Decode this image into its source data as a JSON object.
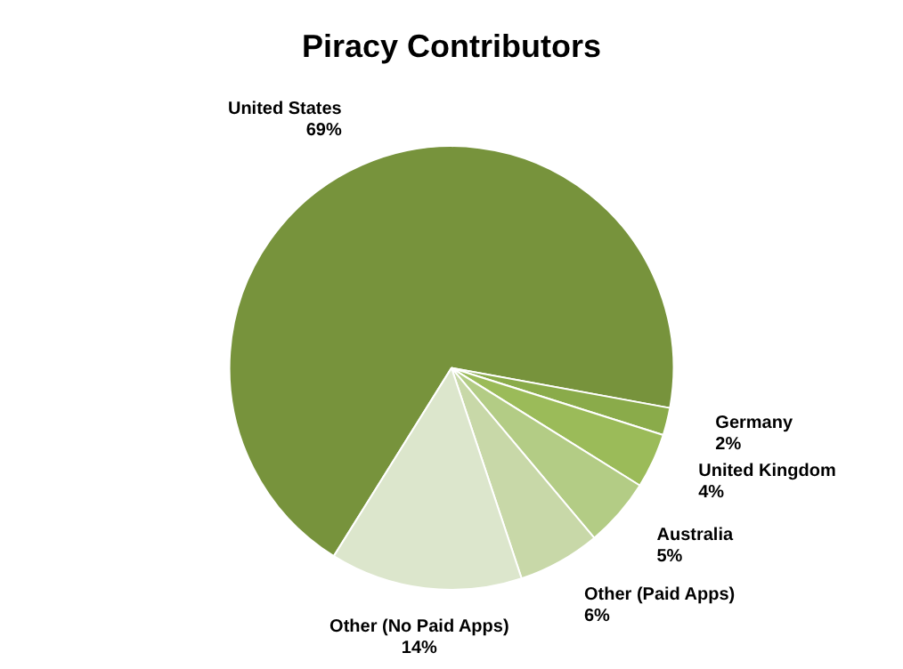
{
  "chart_data": {
    "type": "pie",
    "title": "Piracy Contributors",
    "categories": [
      "United States",
      "Germany",
      "United Kingdom",
      "Australia",
      "Other (Paid Apps)",
      "Other (No Paid Apps)"
    ],
    "values": [
      69,
      2,
      4,
      5,
      6,
      14
    ],
    "colors": [
      "#77933c",
      "#8aab4a",
      "#9bbb59",
      "#b3cc85",
      "#c8d8a8",
      "#dce6cc"
    ],
    "value_labels": [
      "69%",
      "2%",
      "4%",
      "5%",
      "6%",
      "14%"
    ],
    "legend": false
  }
}
